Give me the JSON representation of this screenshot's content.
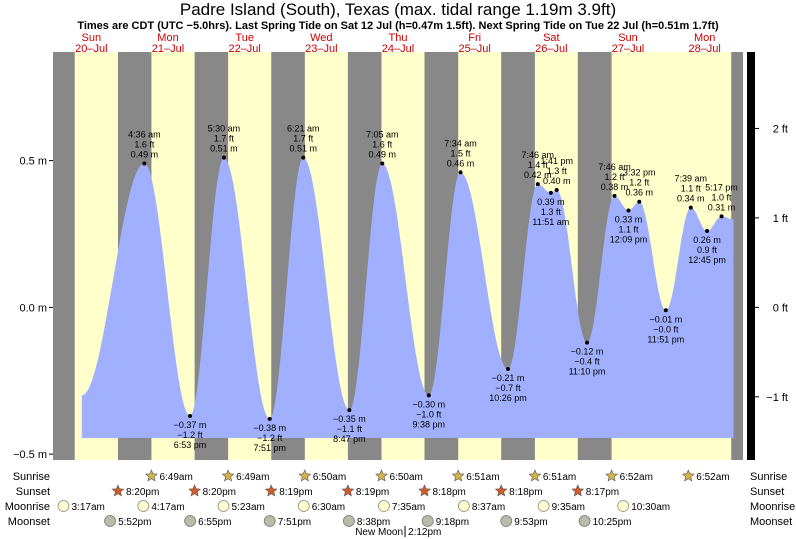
{
  "title": "Padre Island (South), Texas (max. tidal range 1.19m 3.9ft)",
  "subtitle": "Times are CDT (UTC −5.0hrs). Last Spring Tide on Sat 12 Jul (h=0.47m 1.5ft). Next Spring Tide on Tue 22 Jul (h=0.51m 1.7ft)",
  "colors": {
    "night": "#888888",
    "day": "#ffffcc",
    "tide_fill": "#a0b0ff",
    "day_label": "#cc0000",
    "sun_star": "#d4b44a",
    "sunset_star": "#d45a2a",
    "moonrise": "#ffffcc",
    "moonset": "#bbbbaa"
  },
  "icons": {
    "sunrise": "star-icon",
    "sunset": "star-icon",
    "moonrise": "moon-icon",
    "moonset": "moon-icon"
  },
  "days": [
    {
      "dow": "Sun",
      "date": "20–Jul"
    },
    {
      "dow": "Mon",
      "date": "21–Jul"
    },
    {
      "dow": "Tue",
      "date": "22–Jul"
    },
    {
      "dow": "Wed",
      "date": "23–Jul"
    },
    {
      "dow": "Thu",
      "date": "24–Jul"
    },
    {
      "dow": "Fri",
      "date": "25–Jul"
    },
    {
      "dow": "Sat",
      "date": "26–Jul"
    },
    {
      "dow": "Sun",
      "date": "27–Jul"
    },
    {
      "dow": "Mon",
      "date": "28–Jul"
    }
  ],
  "chart_data": {
    "type": "area",
    "y_left_label_unit": "m",
    "y_left_ticks": [
      "0.5 m",
      "0.0 m",
      "−0.5 m"
    ],
    "y_left_tick_values": [
      0.5,
      0.0,
      -0.5
    ],
    "y_right_ticks": [
      "2 ft",
      "1 ft",
      "0 ft",
      "−1 ft"
    ],
    "y_right_tick_values_ft": [
      2,
      1,
      0,
      -1
    ],
    "ylim_m": [
      -0.52,
      0.87
    ],
    "xlim": [
      "2025-07-20 00:00",
      "2025-07-28 23:59"
    ],
    "series_start": "2025-07-20 09:00",
    "series_end": "2025-07-28 21:00",
    "start_level_m": -0.3,
    "end_level_m": 0.3,
    "floor_m": -0.445,
    "extremes": [
      {
        "time": "2025-07-21 04:36",
        "kind": "high",
        "labels": [
          "4:36 am",
          "1.6 ft",
          "0.49 m"
        ],
        "m": 0.49
      },
      {
        "time": "2025-07-21 18:53",
        "kind": "low",
        "labels": [
          "−0.37 m",
          "−1.2 ft",
          "6:53 pm"
        ],
        "m": -0.37
      },
      {
        "time": "2025-07-22 05:30",
        "kind": "high",
        "labels": [
          "5:30 am",
          "1.7 ft",
          "0.51 m"
        ],
        "m": 0.51
      },
      {
        "time": "2025-07-22 19:51",
        "kind": "low",
        "labels": [
          "−0.38 m",
          "−1.2 ft",
          "7:51 pm"
        ],
        "m": -0.38
      },
      {
        "time": "2025-07-23 06:21",
        "kind": "high",
        "labels": [
          "6:21 am",
          "1.7 ft",
          "0.51 m"
        ],
        "m": 0.51
      },
      {
        "time": "2025-07-23 20:47",
        "kind": "low",
        "labels": [
          "−0.35 m",
          "−1.1 ft",
          "8:47 pm"
        ],
        "m": -0.35
      },
      {
        "time": "2025-07-24 07:05",
        "kind": "high",
        "labels": [
          "7:05 am",
          "1.6 ft",
          "0.49 m"
        ],
        "m": 0.49
      },
      {
        "time": "2025-07-24 21:38",
        "kind": "low",
        "labels": [
          "−0.30 m",
          "−1.0 ft",
          "9:38 pm"
        ],
        "m": -0.3
      },
      {
        "time": "2025-07-25 07:34",
        "kind": "high",
        "labels": [
          "7:34 am",
          "1.5 ft",
          "0.46 m"
        ],
        "m": 0.46
      },
      {
        "time": "2025-07-25 22:26",
        "kind": "low",
        "labels": [
          "−0.21 m",
          "−0.7 ft",
          "10:26 pm"
        ],
        "m": -0.21
      },
      {
        "time": "2025-07-26 07:46",
        "kind": "high",
        "labels": [
          "7:46 am",
          "1.4 ft",
          "0.42 m"
        ],
        "m": 0.42
      },
      {
        "time": "2025-07-26 11:51",
        "kind": "low",
        "labels": [
          "0.39 m",
          "1.3 ft",
          "11:51 am"
        ],
        "m": 0.39
      },
      {
        "time": "2025-07-26 13:41",
        "kind": "high",
        "labels": [
          "1:41 pm",
          "1.3 ft",
          "0.40 m"
        ],
        "m": 0.4
      },
      {
        "time": "2025-07-26 23:10",
        "kind": "low",
        "labels": [
          "−0.12 m",
          "−0.4 ft",
          "11:10 pm"
        ],
        "m": -0.12
      },
      {
        "time": "2025-07-27 07:46",
        "kind": "high",
        "labels": [
          "7:46 am",
          "1.2 ft",
          "0.38 m"
        ],
        "m": 0.38
      },
      {
        "time": "2025-07-27 12:09",
        "kind": "low",
        "labels": [
          "0.33 m",
          "1.1 ft",
          "12:09 pm"
        ],
        "m": 0.33
      },
      {
        "time": "2025-07-27 15:32",
        "kind": "high",
        "labels": [
          "3:32 pm",
          "1.2 ft",
          "0.36 m"
        ],
        "m": 0.36
      },
      {
        "time": "2025-07-27 23:51",
        "kind": "low",
        "labels": [
          "−0.01 m",
          "−0.0 ft",
          "11:51 pm"
        ],
        "m": -0.01
      },
      {
        "time": "2025-07-28 07:39",
        "kind": "high",
        "labels": [
          "7:39 am",
          "1.1 ft",
          "0.34 m"
        ],
        "m": 0.34
      },
      {
        "time": "2025-07-28 12:45",
        "kind": "low",
        "labels": [
          "0.26 m",
          "0.9 ft",
          "12:45 pm"
        ],
        "m": 0.26
      },
      {
        "time": "2025-07-28 17:17",
        "kind": "high",
        "labels": [
          "5:17 pm",
          "1.0 ft",
          "0.31 m"
        ],
        "m": 0.31
      }
    ],
    "sunrise": [
      {
        "time": "2025-07-21 06:49",
        "label": "6:49am"
      },
      {
        "time": "2025-07-22 06:49",
        "label": "6:49am"
      },
      {
        "time": "2025-07-23 06:50",
        "label": "6:50am"
      },
      {
        "time": "2025-07-24 06:50",
        "label": "6:50am"
      },
      {
        "time": "2025-07-25 06:51",
        "label": "6:51am"
      },
      {
        "time": "2025-07-26 06:51",
        "label": "6:51am"
      },
      {
        "time": "2025-07-27 06:52",
        "label": "6:52am"
      },
      {
        "time": "2025-07-28 06:52",
        "label": "6:52am"
      }
    ],
    "sunset": [
      {
        "time": "2025-07-20 20:20",
        "label": "8:20pm"
      },
      {
        "time": "2025-07-21 20:20",
        "label": "8:20pm"
      },
      {
        "time": "2025-07-22 20:19",
        "label": "8:19pm"
      },
      {
        "time": "2025-07-23 20:19",
        "label": "8:19pm"
      },
      {
        "time": "2025-07-24 20:18",
        "label": "8:18pm"
      },
      {
        "time": "2025-07-25 20:18",
        "label": "8:18pm"
      },
      {
        "time": "2025-07-26 20:17",
        "label": "8:17pm"
      }
    ],
    "moonrise": [
      {
        "time": "2025-07-20 03:17",
        "label": "3:17am"
      },
      {
        "time": "2025-07-21 04:17",
        "label": "4:17am"
      },
      {
        "time": "2025-07-22 05:23",
        "label": "5:23am"
      },
      {
        "time": "2025-07-23 06:30",
        "label": "6:30am"
      },
      {
        "time": "2025-07-24 07:35",
        "label": "7:35am"
      },
      {
        "time": "2025-07-25 08:37",
        "label": "8:37am"
      },
      {
        "time": "2025-07-26 09:35",
        "label": "9:35am"
      },
      {
        "time": "2025-07-27 10:30",
        "label": "10:30am"
      }
    ],
    "moonset": [
      {
        "time": "2025-07-20 17:52",
        "label": "5:52pm"
      },
      {
        "time": "2025-07-21 18:55",
        "label": "6:55pm"
      },
      {
        "time": "2025-07-22 19:51",
        "label": "7:51pm"
      },
      {
        "time": "2025-07-23 20:38",
        "label": "8:38pm"
      },
      {
        "time": "2025-07-24 21:18",
        "label": "9:18pm"
      },
      {
        "time": "2025-07-25 21:53",
        "label": "9:53pm"
      },
      {
        "time": "2025-07-26 22:25",
        "label": "10:25pm"
      }
    ],
    "row_labels": [
      "Sunrise",
      "Sunset",
      "Moonrise",
      "Moonset"
    ],
    "new_moon": {
      "time": "2025-07-24 14:12",
      "label": "New Moon",
      "time_label": "2:12pm"
    }
  }
}
